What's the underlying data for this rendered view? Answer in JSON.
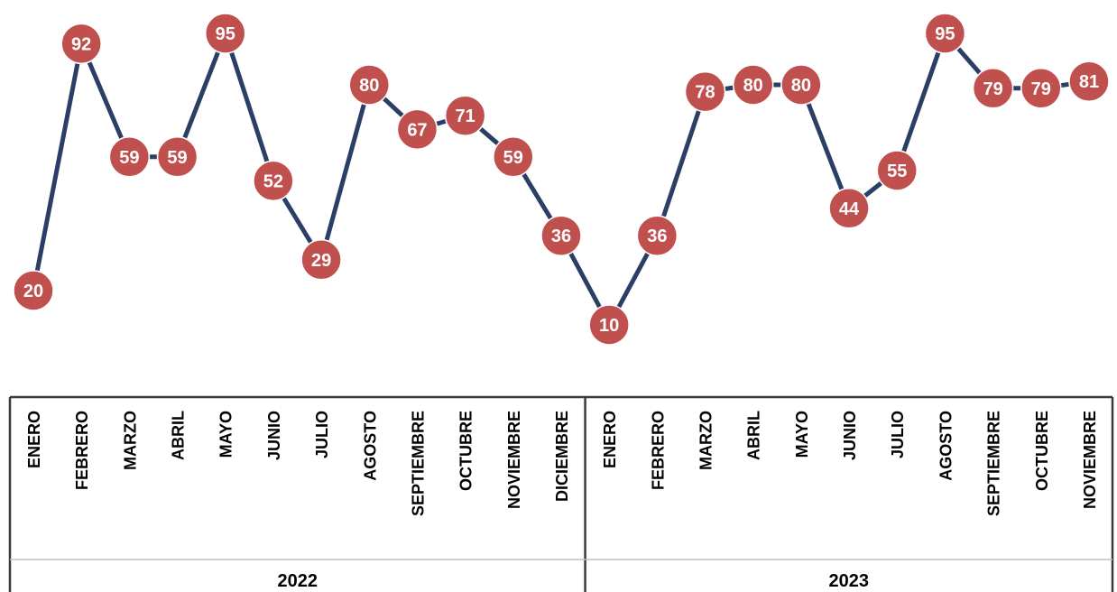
{
  "chart_data": {
    "type": "line",
    "title": "",
    "xlabel": "",
    "ylabel": "",
    "ylim": [
      0,
      100
    ],
    "grid": false,
    "legend": "none",
    "categories": [
      "ENERO",
      "FEBRERO",
      "MARZO",
      "ABRIL",
      "MAYO",
      "JUNIO",
      "JULIO",
      "AGOSTO",
      "SEPTIEMBRE",
      "OCTUBRE",
      "NOVIEMBRE",
      "DICIEMBRE",
      "ENERO",
      "FEBRERO",
      "MARZO",
      "ABRIL",
      "MAYO",
      "JUNIO",
      "JULIO",
      "AGOSTO",
      "SEPTIEMBRE",
      "OCTUBRE",
      "NOVIEMBRE"
    ],
    "groups": [
      {
        "label": "2022",
        "count": 12
      },
      {
        "label": "2023",
        "count": 11
      }
    ],
    "series": [
      {
        "values": [
          20,
          92,
          59,
          59,
          95,
          52,
          29,
          80,
          67,
          71,
          59,
          36,
          10,
          36,
          78,
          80,
          80,
          44,
          55,
          95,
          79,
          79,
          81
        ],
        "line_color": "#2b3f66",
        "marker_color": "#c0504d"
      }
    ]
  }
}
